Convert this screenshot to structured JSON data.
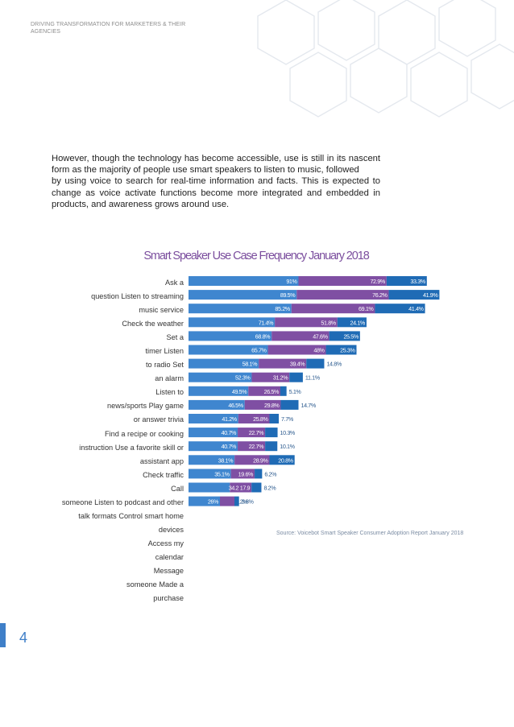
{
  "header": {
    "text": "DRIVING TRANSFORMATION FOR MARKETERS & THEIR AGENCIES"
  },
  "paragraph": {
    "line1": "However, though the technology has become accessible, use is still in its nascent form as the majority of people use smart speakers to listen to music, followed",
    "line2": "by using voice to search for real-time information and facts. This is expected to change as voice activate functions become more integrated and embedded in products, and awareness grows around use."
  },
  "category_lines": [
    "Ask a",
    "question  Listen to streaming",
    "music service",
    "Check the weather",
    "Set a",
    "timer  Listen",
    "to radio  Set",
    "an alarm",
    "Listen to",
    "news/sports  Play game",
    "or answer trivia",
    "Find a recipe or cooking",
    "instruction  Use a favorite skill or",
    "assistant app",
    "Check traffic",
    "Call",
    "someone  Listen to podcast and other",
    "talk formats  Control smart home",
    "devices",
    "Access my",
    "calendar",
    "Message",
    "someone  Made a",
    "purchase"
  ],
  "source": "Source: Voicebot Smart Speaker Consumer Adoption Report January 2018",
  "page_number": "4",
  "colors": {
    "series1": "#3f86cf",
    "series2": "#7f4fa3",
    "series3": "#1f6bb5",
    "label_light": "#ffffff",
    "label_dark": "#2c5b8f",
    "accent": "#3f7fc8"
  },
  "chart_data": {
    "type": "bar",
    "orientation": "horizontal-stacked",
    "title": "Smart Speaker Use Case Frequency January 2018",
    "categories": [
      "Ask a question",
      "Listen to streaming music service",
      "Check the weather",
      "Set a timer",
      "Listen to radio",
      "Set an alarm",
      "Listen to news/sports",
      "Play game or answer trivia",
      "Find a recipe or cooking instruction",
      "Use a favorite skill or assistant app",
      "Check traffic",
      "Call someone",
      "Listen to podcast and other talk formats",
      "Control smart home devices",
      "Access my calendar",
      "Message someone",
      "Made a purchase"
    ],
    "series": [
      {
        "values": [
          91,
          89.5,
          85.2,
          71.4,
          68.8,
          65.7,
          58.1,
          52.3,
          49.5,
          46.5,
          41.2,
          40.7,
          40.7,
          38.1,
          35.1,
          34.2,
          26
        ]
      },
      {
        "values": [
          72.9,
          76.2,
          69.1,
          51.8,
          47.6,
          48,
          39.4,
          31.2,
          26.5,
          29.8,
          25.8,
          22.7,
          22.7,
          28.9,
          19.6,
          17.9,
          12
        ]
      },
      {
        "values": [
          33.3,
          41.9,
          41.4,
          24.1,
          25.5,
          25.3,
          14.8,
          11.1,
          5.1,
          14.7,
          7.7,
          10.3,
          10.1,
          20.8,
          6.2,
          8.2,
          3.8
        ]
      }
    ],
    "labels": [
      [
        "91%",
        "72.9%",
        "33.3%"
      ],
      [
        "89.5%",
        "76.2%",
        "41.9%"
      ],
      [
        "85.2%",
        "69.1%",
        "41.4%"
      ],
      [
        "71.4%",
        "51.8%",
        "24.1%"
      ],
      [
        "68.8%",
        "47.6%",
        "25.5%"
      ],
      [
        "65.7%",
        "48%",
        "25.3%"
      ],
      [
        "58.1%",
        "39.4%",
        "14.8%"
      ],
      [
        "52.3%",
        "31.2%",
        "11.1%"
      ],
      [
        "49.5%",
        "26.5%",
        "5.1%"
      ],
      [
        "46.5%",
        "29.8%",
        "14.7%"
      ],
      [
        "41.2%",
        "25.8%",
        "7.7%"
      ],
      [
        "40.7%",
        "22.7%",
        "10.3%"
      ],
      [
        "40.7%",
        "22.7%",
        "10.1%"
      ],
      [
        "38.1%",
        "28.9%",
        "20.8%"
      ],
      [
        "35.1%",
        "19.6%",
        "6.2%"
      ],
      [
        "",
        "34.2 17.9",
        "8.2%"
      ],
      [
        "26%",
        "12%",
        "3.8%"
      ]
    ]
  }
}
